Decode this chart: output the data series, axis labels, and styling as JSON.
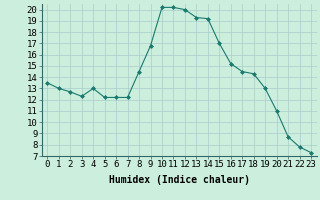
{
  "x": [
    0,
    1,
    2,
    3,
    4,
    5,
    6,
    7,
    8,
    9,
    10,
    11,
    12,
    13,
    14,
    15,
    16,
    17,
    18,
    19,
    20,
    21,
    22,
    23
  ],
  "y": [
    13.5,
    13.0,
    12.7,
    12.3,
    13.0,
    12.2,
    12.2,
    12.2,
    14.5,
    16.8,
    20.2,
    20.2,
    20.0,
    19.3,
    19.2,
    17.0,
    15.2,
    14.5,
    14.3,
    13.0,
    11.0,
    8.7,
    7.8,
    7.3
  ],
  "line_color": "#1a7a6e",
  "marker": "D",
  "marker_size": 2,
  "bg_color": "#cceedd",
  "grid_color": "#aacccc",
  "xlabel": "Humidex (Indice chaleur)",
  "xlim": [
    -0.5,
    23.5
  ],
  "ylim": [
    7,
    20.5
  ],
  "yticks": [
    7,
    8,
    9,
    10,
    11,
    12,
    13,
    14,
    15,
    16,
    17,
    18,
    19,
    20
  ],
  "xticks": [
    0,
    1,
    2,
    3,
    4,
    5,
    6,
    7,
    8,
    9,
    10,
    11,
    12,
    13,
    14,
    15,
    16,
    17,
    18,
    19,
    20,
    21,
    22,
    23
  ],
  "xlabel_fontsize": 7,
  "tick_fontsize": 6.5
}
